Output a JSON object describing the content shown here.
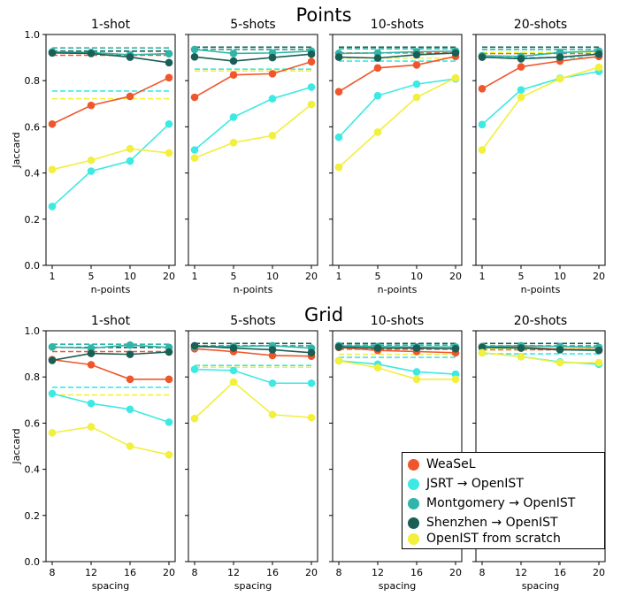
{
  "chart_data": {
    "type": "line",
    "sections": [
      {
        "title": "Points",
        "xlabel": "n-points",
        "x": [
          1,
          5,
          10,
          20
        ]
      },
      {
        "title": "Grid",
        "xlabel": "spacing",
        "x": [
          8,
          12,
          16,
          20
        ]
      }
    ],
    "ylabel": "Jaccard",
    "ylim": [
      0.0,
      1.0
    ],
    "yticks": [
      "0.0",
      "0.2",
      "0.4",
      "0.6",
      "0.8",
      "1.0"
    ],
    "panel_titles": [
      "1-shot",
      "5-shots",
      "10-shots",
      "20-shots"
    ],
    "legend_placement": "bottom-right",
    "series": [
      {
        "name": "WeaSeL",
        "color": "#f0562b"
      },
      {
        "name": "JSRT → OpenIST",
        "color": "#3de9e3"
      },
      {
        "name": "Montgomery → OpenIST",
        "color": "#30b5a8"
      },
      {
        "name": "Shenzhen → OpenIST",
        "color": "#1a5f55"
      },
      {
        "name": "OpenIST from scratch",
        "color": "#f2ef3d"
      }
    ],
    "panels": [
      {
        "section": 0,
        "column": 0,
        "values": [
          [
            0.612,
            0.693,
            0.732,
            0.813
          ],
          [
            0.255,
            0.408,
            0.452,
            0.612
          ],
          [
            0.925,
            0.922,
            0.912,
            0.917
          ],
          [
            0.92,
            0.918,
            0.902,
            0.878
          ],
          [
            0.415,
            0.455,
            0.505,
            0.487
          ]
        ],
        "baselines": [
          0.91,
          0.755,
          0.942,
          0.928,
          0.722
        ]
      },
      {
        "section": 0,
        "column": 1,
        "values": [
          [
            0.728,
            0.825,
            0.83,
            0.882
          ],
          [
            0.5,
            0.642,
            0.722,
            0.772
          ],
          [
            0.935,
            0.918,
            0.92,
            0.928
          ],
          [
            0.903,
            0.885,
            0.9,
            0.915
          ],
          [
            0.465,
            0.532,
            0.562,
            0.697
          ]
        ],
        "baselines": [
          0.935,
          0.85,
          0.935,
          0.945,
          0.842
        ]
      },
      {
        "section": 0,
        "column": 2,
        "values": [
          [
            0.752,
            0.855,
            0.868,
            0.905
          ],
          [
            0.555,
            0.735,
            0.785,
            0.808
          ],
          [
            0.918,
            0.92,
            0.925,
            0.928
          ],
          [
            0.902,
            0.898,
            0.912,
            0.92
          ],
          [
            0.425,
            0.577,
            0.728,
            0.812
          ]
        ],
        "baselines": [
          0.92,
          0.885,
          0.938,
          0.945,
          0.898
        ]
      },
      {
        "section": 0,
        "column": 3,
        "values": [
          [
            0.765,
            0.86,
            0.885,
            0.905
          ],
          [
            0.61,
            0.76,
            0.81,
            0.84
          ],
          [
            0.908,
            0.905,
            0.922,
            0.928
          ],
          [
            0.902,
            0.895,
            0.902,
            0.915
          ],
          [
            0.5,
            0.728,
            0.808,
            0.858
          ]
        ],
        "baselines": [
          0.918,
          0.9,
          0.935,
          0.945,
          0.922
        ]
      },
      {
        "section": 1,
        "column": 0,
        "values": [
          [
            0.875,
            0.853,
            0.79,
            0.79
          ],
          [
            0.728,
            0.685,
            0.66,
            0.604
          ],
          [
            0.93,
            0.925,
            0.938,
            0.928
          ],
          [
            0.872,
            0.902,
            0.898,
            0.908
          ],
          [
            0.558,
            0.584,
            0.5,
            0.463
          ]
        ],
        "baselines": [
          0.91,
          0.755,
          0.942,
          0.928,
          0.722
        ]
      },
      {
        "section": 1,
        "column": 1,
        "values": [
          [
            0.922,
            0.91,
            0.893,
            0.89
          ],
          [
            0.833,
            0.828,
            0.773,
            0.773
          ],
          [
            0.93,
            0.932,
            0.935,
            0.925
          ],
          [
            0.935,
            0.925,
            0.918,
            0.905
          ],
          [
            0.62,
            0.778,
            0.637,
            0.624
          ]
        ],
        "baselines": [
          0.935,
          0.85,
          0.935,
          0.945,
          0.842
        ]
      },
      {
        "section": 1,
        "column": 2,
        "values": [
          [
            0.928,
            0.915,
            0.91,
            0.905
          ],
          [
            0.87,
            0.855,
            0.822,
            0.812
          ],
          [
            0.935,
            0.932,
            0.93,
            0.93
          ],
          [
            0.93,
            0.925,
            0.925,
            0.922
          ],
          [
            0.87,
            0.84,
            0.79,
            0.79
          ]
        ],
        "baselines": [
          0.92,
          0.885,
          0.938,
          0.945,
          0.898
        ]
      },
      {
        "section": 1,
        "column": 3,
        "values": [
          [
            0.93,
            0.93,
            0.92,
            0.918
          ],
          [
            0.905,
            0.888,
            0.865,
            0.855
          ],
          [
            0.932,
            0.935,
            0.932,
            0.928
          ],
          [
            0.928,
            0.925,
            0.918,
            0.915
          ],
          [
            0.905,
            0.888,
            0.862,
            0.862
          ]
        ],
        "baselines": [
          0.918,
          0.9,
          0.935,
          0.945,
          0.922
        ]
      }
    ]
  }
}
